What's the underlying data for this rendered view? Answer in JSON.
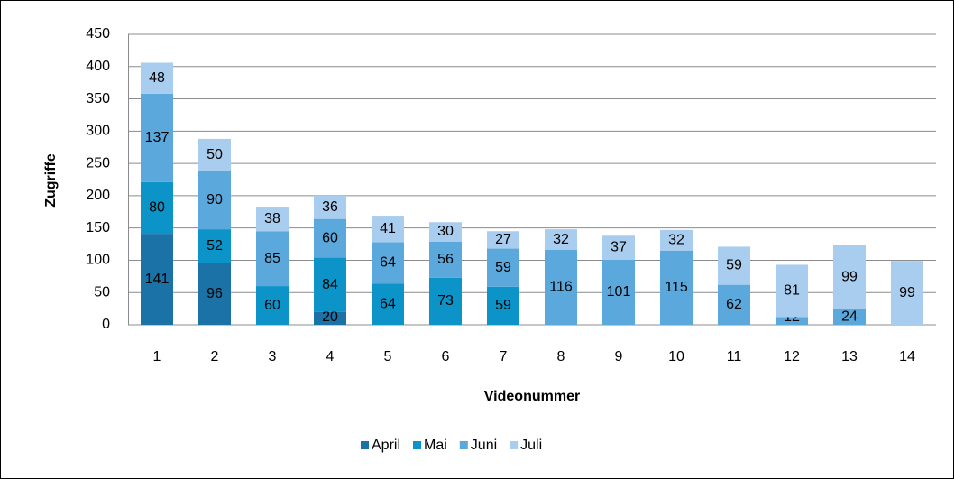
{
  "chart_data": {
    "type": "stacked_bar",
    "xlabel": "Videonummer",
    "ylabel": "Zugriffe",
    "categories": [
      "1",
      "2",
      "3",
      "4",
      "5",
      "6",
      "7",
      "8",
      "9",
      "10",
      "11",
      "12",
      "13",
      "14"
    ],
    "series": [
      {
        "name": "April",
        "color": "#1a72a6",
        "values": [
          141,
          96,
          null,
          20,
          null,
          null,
          null,
          null,
          null,
          null,
          null,
          null,
          null,
          null
        ]
      },
      {
        "name": "Mai",
        "color": "#0c93c8",
        "values": [
          80,
          52,
          60,
          84,
          64,
          73,
          59,
          null,
          null,
          null,
          null,
          null,
          null,
          null
        ]
      },
      {
        "name": "Juni",
        "color": "#5ba8dc",
        "values": [
          137,
          90,
          85,
          60,
          64,
          56,
          59,
          116,
          101,
          115,
          62,
          12,
          24,
          null
        ]
      },
      {
        "name": "Juli",
        "color": "#a9cdee",
        "values": [
          48,
          50,
          38,
          36,
          41,
          30,
          27,
          32,
          37,
          32,
          59,
          81,
          99,
          99
        ]
      }
    ],
    "ylim": [
      0,
      450
    ],
    "yticks": [
      0,
      50,
      100,
      150,
      200,
      250,
      300,
      350,
      400,
      450
    ],
    "grid": true,
    "legend": "bottom"
  }
}
